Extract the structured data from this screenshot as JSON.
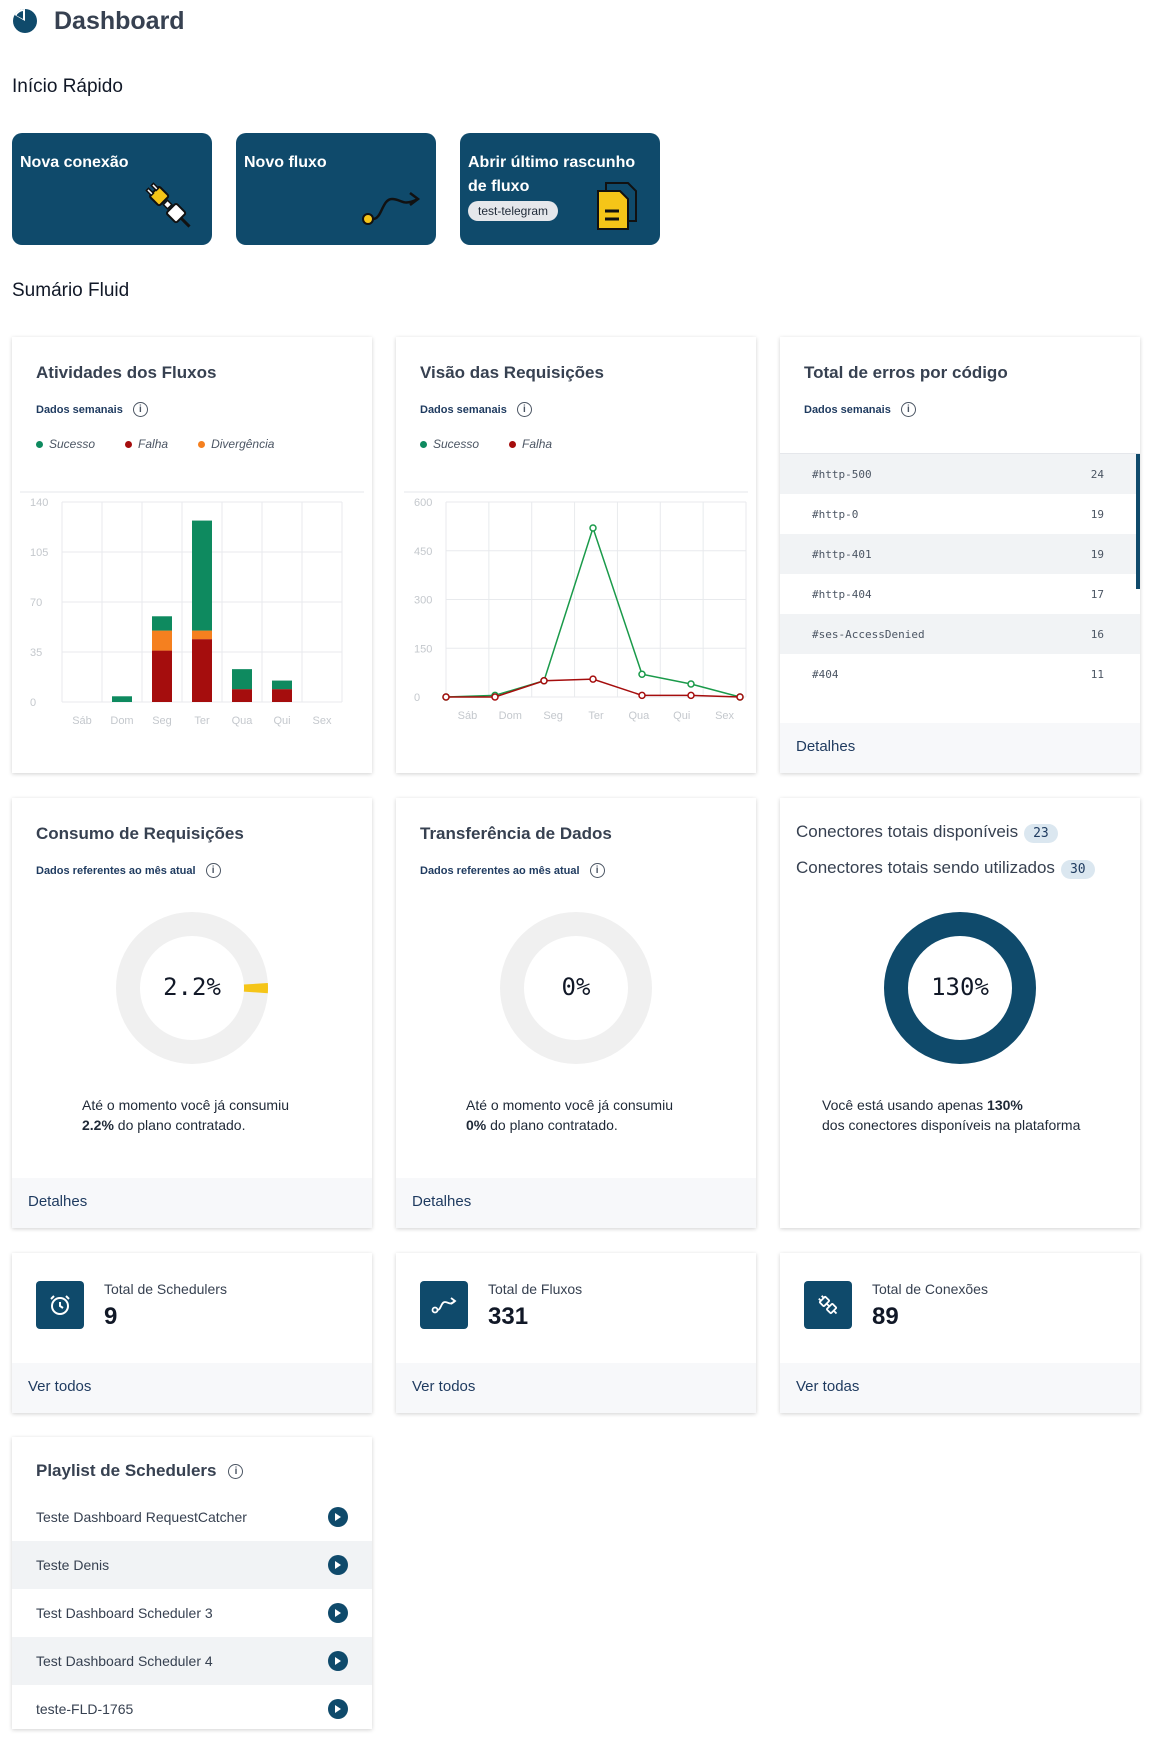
{
  "header": {
    "title": "Dashboard",
    "icon": "pie-chart-icon"
  },
  "quick_start": {
    "title": "Início Rápido",
    "cards": [
      {
        "label": "Nova conexão",
        "icon": "plug-icon"
      },
      {
        "label": "Novo fluxo",
        "icon": "flow-arrow-icon"
      },
      {
        "label": "Abrir último rascunho de fluxo",
        "tag": "test-telegram",
        "icon": "draft-document-icon"
      }
    ]
  },
  "summary": {
    "title": "Sumário Fluid"
  },
  "colors": {
    "primary": "#0f4a6b",
    "success": "#0e8a5f",
    "failure": "#a50d0d",
    "divergence": "#f5801f",
    "usage": "#f5c518"
  },
  "activities": {
    "title": "Atividades dos Fluxos",
    "subtitle": "Dados semanais",
    "legend": [
      "Sucesso",
      "Falha",
      "Divergência"
    ]
  },
  "requests_view": {
    "title": "Visão das Requisições",
    "subtitle": "Dados semanais",
    "legend": [
      "Sucesso",
      "Falha"
    ]
  },
  "errors": {
    "title": "Total de erros por código",
    "subtitle": "Dados semanais",
    "rows": [
      {
        "code": "#http-500",
        "count": "24"
      },
      {
        "code": "#http-0",
        "count": "19"
      },
      {
        "code": "#http-401",
        "count": "19"
      },
      {
        "code": "#http-404",
        "count": "17"
      },
      {
        "code": "#ses-AccessDenied",
        "count": "16"
      },
      {
        "code": "#404",
        "count": "11"
      }
    ],
    "footer": "Detalhes"
  },
  "consumption": {
    "title": "Consumo de Requisições",
    "subtitle": "Dados referentes ao mês atual",
    "value_label": "2.2%",
    "value": 2.2,
    "desc_line1": "Até o momento você já consumiu",
    "desc_bold": "2.2%",
    "desc_rest": " do plano contratado.",
    "footer": "Detalhes"
  },
  "transfer": {
    "title": "Transferência de Dados",
    "subtitle": "Dados referentes ao mês atual",
    "value_label": "0%",
    "value": 0,
    "desc_line1": "Até o momento você já consumiu",
    "desc_bold": "0%",
    "desc_rest": " do plano contratado.",
    "footer": "Detalhes"
  },
  "connectors": {
    "available_label": "Conectores totais disponíveis",
    "available_value": "23",
    "used_label": "Conectores totais sendo utilizados",
    "used_value": "30",
    "value_label": "130%",
    "value": 130,
    "desc_pre": "Você está usando apenas ",
    "desc_bold": "130%",
    "desc_line2": "dos conectores disponíveis na plataforma"
  },
  "stats": [
    {
      "label": "Total de Schedulers",
      "value": "9",
      "link": "Ver todos",
      "icon": "alarm-clock-icon"
    },
    {
      "label": "Total de Fluxos",
      "value": "331",
      "link": "Ver todos",
      "icon": "flow-arrow-icon"
    },
    {
      "label": "Total de Conexões",
      "value": "89",
      "link": "Ver todas",
      "icon": "plug-icon"
    }
  ],
  "playlist": {
    "title": "Playlist de Schedulers",
    "items": [
      "Teste Dashboard RequestCatcher",
      "Teste Denis",
      "Test Dashboard Scheduler 3",
      "Test Dashboard Scheduler 4",
      "teste-FLD-1765"
    ]
  },
  "chart_data": [
    {
      "type": "bar",
      "title": "Atividades dos Fluxos",
      "categories": [
        "Sáb",
        "Dom",
        "Seg",
        "Ter",
        "Qua",
        "Qui",
        "Sex"
      ],
      "ylim": [
        0,
        140
      ],
      "yticks": [
        "0",
        "35",
        "70",
        "105",
        "140"
      ],
      "stacked": true,
      "series": [
        {
          "name": "Falha",
          "color": "#a50d0d",
          "values": [
            0,
            0,
            36,
            44,
            9,
            9,
            0
          ]
        },
        {
          "name": "Divergência",
          "color": "#f5801f",
          "values": [
            0,
            0,
            14,
            6,
            0,
            0,
            0
          ]
        },
        {
          "name": "Sucesso",
          "color": "#0e8a5f",
          "values": [
            0,
            4,
            10,
            77,
            14,
            6,
            0
          ]
        }
      ],
      "grid": true
    },
    {
      "type": "line",
      "title": "Visão das Requisições",
      "categories": [
        "Sáb",
        "Dom",
        "Seg",
        "Ter",
        "Qua",
        "Qui",
        "Sex"
      ],
      "ylim": [
        0,
        600
      ],
      "yticks": [
        "0",
        "150",
        "300",
        "450",
        "600"
      ],
      "series": [
        {
          "name": "Sucesso",
          "color": "#1a9a4a",
          "values": [
            0,
            5,
            50,
            520,
            70,
            40,
            0
          ]
        },
        {
          "name": "Falha",
          "color": "#a50d0d",
          "values": [
            0,
            0,
            50,
            55,
            5,
            5,
            0
          ]
        }
      ],
      "grid": true
    }
  ]
}
